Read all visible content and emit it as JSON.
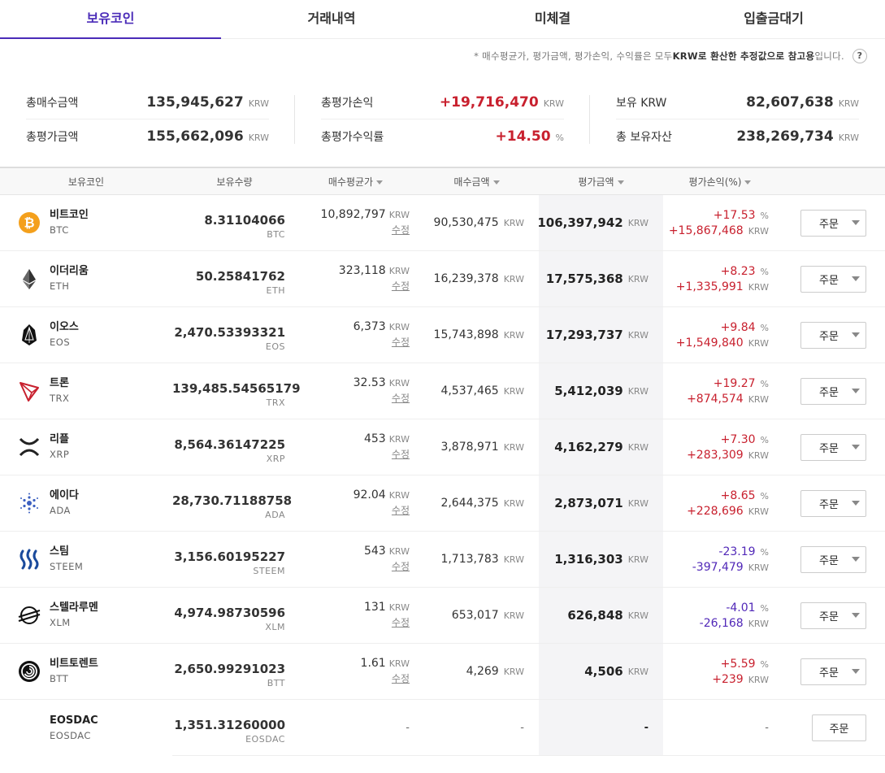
{
  "tabs": [
    "보유코인",
    "거래내역",
    "미체결",
    "입출금대기"
  ],
  "notice": {
    "pre": "* 매수평균가, 평가금액, 평가손익, 수익률은 모두 ",
    "bold1": "KRW로 환산한 추정값으로 참고용",
    "post": "입니다.",
    "help": "?"
  },
  "summary": {
    "total_buy_label": "총매수금액",
    "total_buy": "135,945,627",
    "total_eval_label": "총평가금액",
    "total_eval": "155,662,096",
    "pl_label": "총평가손익",
    "pl": "+19,716,470",
    "rate_label": "총평가수익률",
    "rate": "+14.50",
    "krw_label": "보유 KRW",
    "krw": "82,607,638",
    "assets_label": "총 보유자산",
    "assets": "238,269,734",
    "unit": "KRW",
    "pct": "%"
  },
  "columns": [
    "보유코인",
    "보유수량",
    "매수평균가",
    "매수금액",
    "평가금액",
    "평가손익(%)"
  ],
  "edit_label": "수정",
  "order_label": "주문",
  "unit": "KRW",
  "pct": "%",
  "dash": "-",
  "rows": [
    {
      "name": "비트코인",
      "sym": "BTC",
      "icon": "bitcoin-icon",
      "qty": "8.31104066",
      "avg": "10,892,797",
      "buy": "90,530,475",
      "eval": "106,397,942",
      "rate": "+17.53",
      "pl": "+15,867,468",
      "dir": "up"
    },
    {
      "name": "이더리움",
      "sym": "ETH",
      "icon": "ethereum-icon",
      "qty": "50.25841762",
      "avg": "323,118",
      "buy": "16,239,378",
      "eval": "17,575,368",
      "rate": "+8.23",
      "pl": "+1,335,991",
      "dir": "up"
    },
    {
      "name": "이오스",
      "sym": "EOS",
      "icon": "eos-icon",
      "qty": "2,470.53393321",
      "avg": "6,373",
      "buy": "15,743,898",
      "eval": "17,293,737",
      "rate": "+9.84",
      "pl": "+1,549,840",
      "dir": "up"
    },
    {
      "name": "트론",
      "sym": "TRX",
      "icon": "tron-icon",
      "qty": "139,485.54565179",
      "avg": "32.53",
      "buy": "4,537,465",
      "eval": "5,412,039",
      "rate": "+19.27",
      "pl": "+874,574",
      "dir": "up"
    },
    {
      "name": "리플",
      "sym": "XRP",
      "icon": "ripple-icon",
      "qty": "8,564.36147225",
      "avg": "453",
      "buy": "3,878,971",
      "eval": "4,162,279",
      "rate": "+7.30",
      "pl": "+283,309",
      "dir": "up"
    },
    {
      "name": "에이다",
      "sym": "ADA",
      "icon": "cardano-icon",
      "qty": "28,730.71188758",
      "avg": "92.04",
      "buy": "2,644,375",
      "eval": "2,873,071",
      "rate": "+8.65",
      "pl": "+228,696",
      "dir": "up"
    },
    {
      "name": "스팀",
      "sym": "STEEM",
      "icon": "steem-icon",
      "qty": "3,156.60195227",
      "avg": "543",
      "buy": "1,713,783",
      "eval": "1,316,303",
      "rate": "-23.19",
      "pl": "-397,479",
      "dir": "down"
    },
    {
      "name": "스텔라루멘",
      "sym": "XLM",
      "icon": "stellar-icon",
      "qty": "4,974.98730596",
      "avg": "131",
      "buy": "653,017",
      "eval": "626,848",
      "rate": "-4.01",
      "pl": "-26,168",
      "dir": "down"
    },
    {
      "name": "비트토렌트",
      "sym": "BTT",
      "icon": "bittorrent-icon",
      "qty": "2,650.99291023",
      "avg": "1.61",
      "buy": "4,269",
      "eval": "4,506",
      "rate": "+5.59",
      "pl": "+239",
      "dir": "up"
    }
  ],
  "last_row": {
    "name": "EOSDAC",
    "sym": "EOSDAC",
    "qty": "1,351.31260000"
  }
}
